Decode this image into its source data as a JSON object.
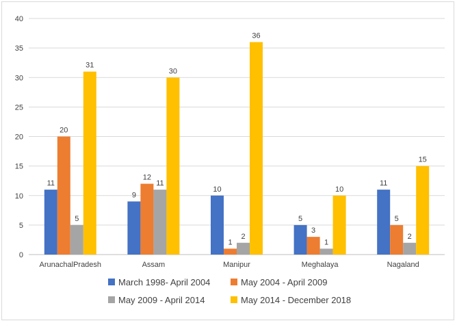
{
  "chart_data": {
    "type": "bar",
    "categories": [
      "ArunachalPradesh",
      "Assam",
      "Manipur",
      "Meghalaya",
      "Nagaland"
    ],
    "series": [
      {
        "name": "March 1998- April 2004",
        "color": "#4472c4",
        "values": [
          11,
          9,
          10,
          5,
          11
        ]
      },
      {
        "name": "May 2004 - April 2009",
        "color": "#ed7d31",
        "values": [
          20,
          12,
          1,
          3,
          5
        ]
      },
      {
        "name": "May 2009 - April 2014",
        "color": "#a5a5a5",
        "values": [
          5,
          11,
          2,
          1,
          2
        ]
      },
      {
        "name": "May 2014 - December 2018",
        "color": "#ffc000",
        "values": [
          31,
          30,
          36,
          10,
          15
        ]
      }
    ],
    "ylim": [
      0,
      40
    ],
    "yticks": [
      0,
      5,
      10,
      15,
      20,
      25,
      30,
      35,
      40
    ],
    "grid": true,
    "legend_position": "bottom",
    "data_labels": true
  }
}
